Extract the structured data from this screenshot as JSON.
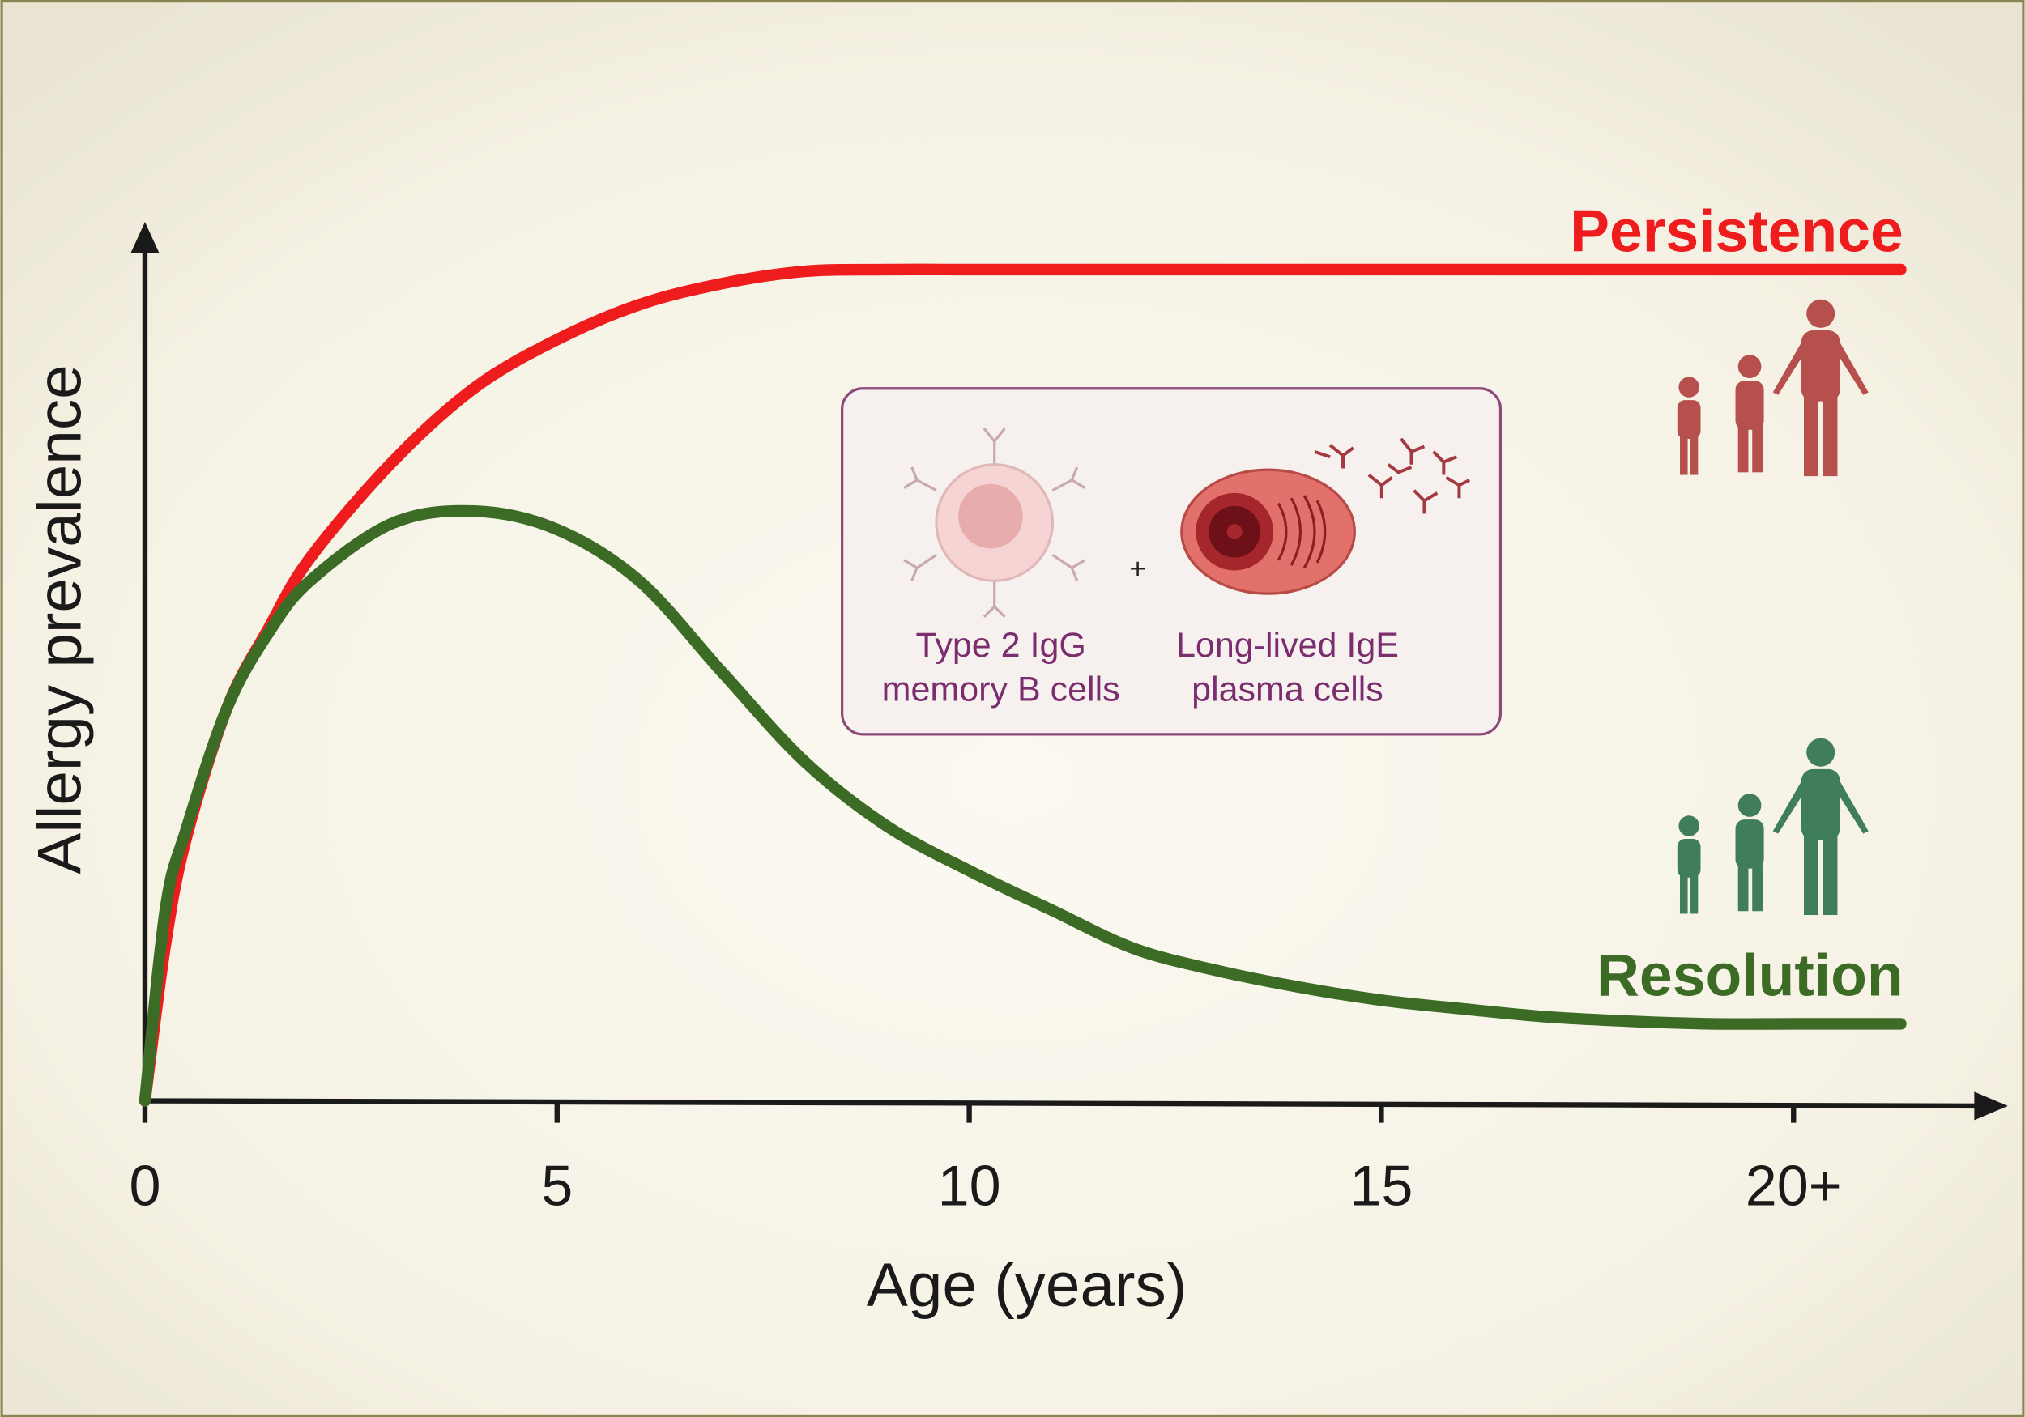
{
  "chart_data": {
    "type": "line",
    "x_label": "Age (years)",
    "y_label": "Allergy prevalence",
    "x": [
      0,
      0.25,
      0.5,
      1,
      1.5,
      2,
      3,
      4,
      5,
      6,
      7,
      8,
      9,
      10,
      11,
      12,
      13,
      14,
      15,
      16,
      17,
      18,
      19,
      20,
      21.3
    ],
    "series": [
      {
        "name": "Persistence",
        "color": "#ee1c1c",
        "values": [
          0,
          18,
          30,
          45,
          54,
          62,
          73,
          81.5,
          87,
          91,
          93.4,
          94.8,
          95,
          95,
          95,
          95,
          95,
          95,
          95,
          95,
          95,
          95,
          95,
          95,
          95
        ]
      },
      {
        "name": "Resolution",
        "color": "#3b6b24",
        "values": [
          0,
          22,
          31,
          45,
          53.5,
          59.4,
          66,
          67.4,
          65.3,
          59.4,
          49,
          38.8,
          31.4,
          26.3,
          21.8,
          17.4,
          14.9,
          13,
          11.5,
          10.5,
          9.6,
          9.1,
          8.8,
          8.8,
          8.8
        ]
      }
    ],
    "xlim": [
      0,
      22.6
    ],
    "ylim": [
      0,
      100
    ],
    "xticks": [
      0,
      5,
      10,
      15,
      {
        "value": 20,
        "label": "20+"
      }
    ],
    "annotations": {
      "plus": "+",
      "b_cells": [
        "Type 2 IgG",
        "memory B cells"
      ],
      "plasma_cells": [
        "Long-lived IgE",
        "plasma cells"
      ]
    }
  }
}
